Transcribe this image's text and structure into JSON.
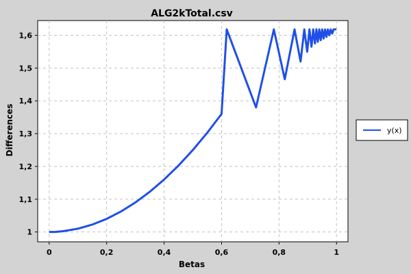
{
  "chart_data": {
    "type": "line",
    "title": "ALG2kTotal.csv",
    "xlabel": "Betas",
    "ylabel": "Differences",
    "xlim": [
      -0.04,
      1.04
    ],
    "ylim": [
      0.97,
      1.645
    ],
    "xticks": [
      0,
      0.2,
      0.4,
      0.6,
      0.8,
      1
    ],
    "xtick_labels": [
      "0",
      "0,2",
      "0,4",
      "0,6",
      "0,8",
      "1"
    ],
    "yticks": [
      1.0,
      1.1,
      1.2,
      1.3,
      1.4,
      1.5,
      1.6
    ],
    "ytick_labels": [
      "1",
      "1,1",
      "1,2",
      "1,3",
      "1,4",
      "1,5",
      "1,6"
    ],
    "grid": true,
    "legend_position": "right",
    "series": [
      {
        "name": "y(x)",
        "color": "#1f4fe8",
        "x": [
          0,
          0.02,
          0.05,
          0.1,
          0.15,
          0.2,
          0.25,
          0.3,
          0.35,
          0.4,
          0.45,
          0.5,
          0.55,
          0.6,
          0.618,
          0.72,
          0.782,
          0.82,
          0.854,
          0.875,
          0.888,
          0.898,
          0.906,
          0.913,
          0.919,
          0.925,
          0.93,
          0.935,
          0.94,
          0.945,
          0.95,
          0.955,
          0.96,
          0.965,
          0.97,
          0.975,
          0.98,
          0.985,
          0.99,
          1.0
        ],
        "y": [
          1.0,
          1.0,
          1.0025,
          1.01,
          1.0225,
          1.04,
          1.0625,
          1.09,
          1.1225,
          1.16,
          1.2025,
          1.25,
          1.3025,
          1.36,
          1.618,
          1.38,
          1.618,
          1.466,
          1.618,
          1.52,
          1.618,
          1.55,
          1.618,
          1.565,
          1.618,
          1.575,
          1.618,
          1.58,
          1.618,
          1.585,
          1.618,
          1.59,
          1.618,
          1.595,
          1.618,
          1.6,
          1.618,
          1.605,
          1.618,
          1.618
        ]
      }
    ]
  }
}
